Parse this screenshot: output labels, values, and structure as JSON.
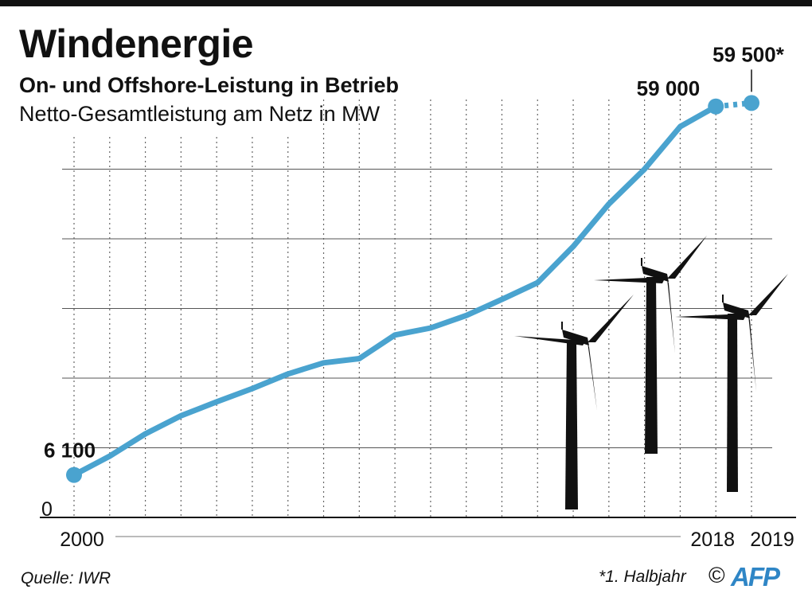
{
  "header": {
    "title": "Windenergie",
    "subtitle": "On- und Offshore-Leistung in Betrieb",
    "unit_line": "Netto-Gesamtleistung am Netz in MW"
  },
  "footer": {
    "source": "Quelle: IWR",
    "footnote": "*1. Halbjahr",
    "copyright": "©",
    "logo_text": "AFP"
  },
  "colors": {
    "line": "#4aa3cf",
    "text": "#111111",
    "grid": "#555555",
    "turbine": "#111111"
  },
  "chart_data": {
    "type": "line",
    "title": "Windenergie",
    "subtitle": "On- und Offshore-Leistung in Betrieb",
    "ylabel": "Netto-Gesamtleistung am Netz in MW",
    "xlim": [
      2000,
      2019
    ],
    "ylim": [
      0,
      60000
    ],
    "y_ticks": [
      0,
      10000,
      20000,
      30000,
      40000,
      50000
    ],
    "y_tick_labels_shown": [
      "0"
    ],
    "x_tick_labels_shown": [
      "2000",
      "2018",
      "2019"
    ],
    "grid": {
      "horizontal": true,
      "vertical_dotted": true
    },
    "series": [
      {
        "x": [
          2000,
          2001,
          2002,
          2003,
          2004,
          2005,
          2006,
          2007,
          2008,
          2009,
          2010,
          2011,
          2012,
          2013,
          2014,
          2015,
          2016,
          2017,
          2018,
          2019
        ],
        "y": [
          6100,
          8800,
          12000,
          14600,
          16600,
          18500,
          20600,
          22200,
          22800,
          26200,
          27200,
          29000,
          31300,
          33700,
          38900,
          45000,
          50000,
          56100,
          59000,
          59500
        ],
        "dashed_last_segment": true
      }
    ],
    "data_labels": [
      {
        "x": 2000,
        "y": 6100,
        "text": "6 100"
      },
      {
        "x": 2018,
        "y": 59000,
        "text": "59 000"
      },
      {
        "x": 2019,
        "y": 59500,
        "text": "59 500*"
      }
    ]
  }
}
